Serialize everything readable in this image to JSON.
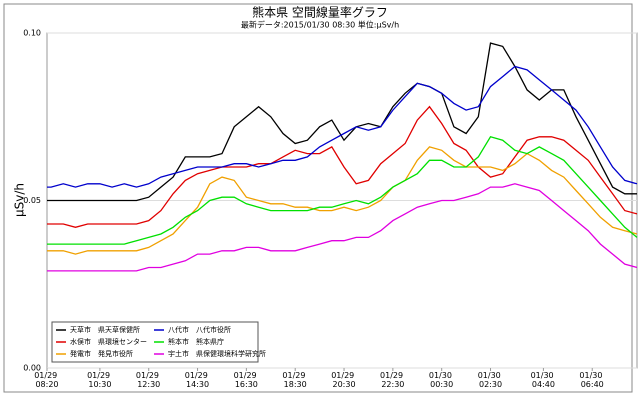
{
  "chart_data": {
    "type": "line",
    "title": "熊本県 空間線量率グラフ",
    "subtitle": "最新データ:2015/01/30 08:30 単位:μSv/h",
    "y_label": "μSv/h",
    "x": [
      "01/29 08:20",
      "01/29 08:30",
      "01/29 09:00",
      "01/29 09:30",
      "01/29 10:00",
      "01/29 10:30",
      "01/29 11:00",
      "01/29 11:30",
      "01/29 12:00",
      "01/29 12:30",
      "01/29 13:00",
      "01/29 13:30",
      "01/29 14:00",
      "01/29 14:30",
      "01/29 15:00",
      "01/29 15:30",
      "01/29 16:00",
      "01/29 16:30",
      "01/29 17:00",
      "01/29 17:30",
      "01/29 18:00",
      "01/29 18:30",
      "01/29 19:00",
      "01/29 19:30",
      "01/29 20:00",
      "01/29 20:30",
      "01/29 21:00",
      "01/29 21:30",
      "01/29 22:00",
      "01/29 22:30",
      "01/29 23:00",
      "01/29 23:30",
      "01/30 00:00",
      "01/30 00:30",
      "01/30 01:00",
      "01/30 01:30",
      "01/30 02:00",
      "01/30 02:30",
      "01/30 03:00",
      "01/30 03:30",
      "01/30 04:00",
      "01/30 04:30",
      "01/30 05:00",
      "01/30 05:30",
      "01/30 06:00",
      "01/30 06:30",
      "01/30 07:00",
      "01/30 07:30",
      "01/30 08:00",
      "01/30 08:30"
    ],
    "series": [
      {
        "name": "天草市　県天草保健所",
        "color": "#000000",
        "values": [
          0.05,
          0.05,
          0.05,
          0.05,
          0.05,
          0.05,
          0.05,
          0.05,
          0.05,
          0.051,
          0.054,
          0.057,
          0.063,
          0.063,
          0.063,
          0.064,
          0.072,
          0.075,
          0.078,
          0.075,
          0.07,
          0.067,
          0.068,
          0.072,
          0.074,
          0.068,
          0.072,
          0.073,
          0.072,
          0.078,
          0.082,
          0.085,
          0.084,
          0.082,
          0.072,
          0.07,
          0.075,
          0.097,
          0.096,
          0.09,
          0.083,
          0.08,
          0.083,
          0.083,
          0.075,
          0.068,
          0.061,
          0.054,
          0.052,
          0.052
        ]
      },
      {
        "name": "水俣市　県環境センター",
        "color": "#e00000",
        "values": [
          0.043,
          0.043,
          0.043,
          0.042,
          0.043,
          0.043,
          0.043,
          0.043,
          0.043,
          0.044,
          0.047,
          0.052,
          0.056,
          0.058,
          0.059,
          0.06,
          0.06,
          0.06,
          0.061,
          0.061,
          0.063,
          0.065,
          0.064,
          0.064,
          0.066,
          0.06,
          0.055,
          0.056,
          0.061,
          0.064,
          0.067,
          0.074,
          0.078,
          0.073,
          0.067,
          0.065,
          0.06,
          0.057,
          0.058,
          0.063,
          0.068,
          0.069,
          0.069,
          0.068,
          0.065,
          0.062,
          0.057,
          0.052,
          0.047,
          0.046
        ]
      },
      {
        "name": "発電市　発見市役所",
        "color": "#f0a000",
        "values": [
          0.035,
          0.035,
          0.035,
          0.034,
          0.035,
          0.035,
          0.035,
          0.035,
          0.035,
          0.036,
          0.038,
          0.04,
          0.044,
          0.048,
          0.055,
          0.057,
          0.056,
          0.051,
          0.05,
          0.049,
          0.049,
          0.048,
          0.048,
          0.047,
          0.047,
          0.048,
          0.047,
          0.048,
          0.05,
          0.054,
          0.056,
          0.062,
          0.066,
          0.065,
          0.062,
          0.06,
          0.06,
          0.06,
          0.059,
          0.061,
          0.064,
          0.062,
          0.059,
          0.057,
          0.053,
          0.049,
          0.045,
          0.042,
          0.041,
          0.04
        ]
      },
      {
        "name": "八代市　八代市役所",
        "color": "#0000cc",
        "values": [
          0.054,
          0.054,
          0.055,
          0.054,
          0.055,
          0.055,
          0.054,
          0.055,
          0.054,
          0.055,
          0.057,
          0.058,
          0.059,
          0.06,
          0.06,
          0.06,
          0.061,
          0.061,
          0.06,
          0.061,
          0.062,
          0.062,
          0.063,
          0.066,
          0.068,
          0.07,
          0.072,
          0.071,
          0.072,
          0.077,
          0.081,
          0.085,
          0.084,
          0.082,
          0.079,
          0.077,
          0.078,
          0.084,
          0.087,
          0.09,
          0.089,
          0.086,
          0.083,
          0.08,
          0.077,
          0.072,
          0.066,
          0.06,
          0.056,
          0.055
        ]
      },
      {
        "name": "熊本市　熊本県庁",
        "color": "#00e000",
        "values": [
          0.037,
          0.037,
          0.037,
          0.037,
          0.037,
          0.037,
          0.037,
          0.037,
          0.038,
          0.039,
          0.04,
          0.042,
          0.045,
          0.047,
          0.05,
          0.051,
          0.051,
          0.049,
          0.048,
          0.047,
          0.047,
          0.047,
          0.047,
          0.048,
          0.048,
          0.049,
          0.05,
          0.049,
          0.051,
          0.054,
          0.056,
          0.058,
          0.062,
          0.062,
          0.06,
          0.06,
          0.063,
          0.069,
          0.068,
          0.065,
          0.064,
          0.066,
          0.064,
          0.062,
          0.058,
          0.054,
          0.05,
          0.046,
          0.042,
          0.039
        ]
      },
      {
        "name": "宇土市　県保健環境科学研究所",
        "color": "#e000e0",
        "values": [
          0.029,
          0.029,
          0.029,
          0.029,
          0.029,
          0.029,
          0.029,
          0.029,
          0.029,
          0.03,
          0.03,
          0.031,
          0.032,
          0.034,
          0.034,
          0.035,
          0.035,
          0.036,
          0.036,
          0.035,
          0.035,
          0.035,
          0.036,
          0.037,
          0.038,
          0.038,
          0.039,
          0.039,
          0.041,
          0.044,
          0.046,
          0.048,
          0.049,
          0.05,
          0.05,
          0.051,
          0.052,
          0.054,
          0.054,
          0.055,
          0.054,
          0.053,
          0.05,
          0.047,
          0.044,
          0.041,
          0.037,
          0.034,
          0.031,
          0.03
        ]
      }
    ],
    "xlim": [
      "01/29 08:20",
      "01/30 08:30"
    ],
    "xticks": [
      "01/29 08:20",
      "01/29 10:30",
      "01/29 12:30",
      "01/29 14:30",
      "01/29 16:30",
      "01/29 18:30",
      "01/29 20:30",
      "01/29 22:30",
      "01/30 00:30",
      "01/30 02:30",
      "01/30 04:40",
      "01/30 06:40"
    ],
    "ylim": [
      0,
      0.1
    ],
    "yticks": [
      {
        "value": 0,
        "label": "0.00"
      },
      {
        "value": 0.05,
        "label": "0.05"
      },
      {
        "value": 0.1,
        "label": "0.10"
      }
    ],
    "grid": true
  }
}
